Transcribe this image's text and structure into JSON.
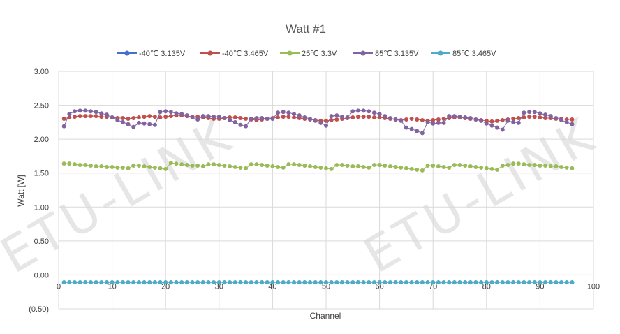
{
  "chart_data": {
    "type": "line",
    "title": "Watt #1",
    "xlabel": "Channel",
    "ylabel": "Watt [W]",
    "xlim": [
      0,
      100
    ],
    "ylim": [
      -0.5,
      3.0
    ],
    "x_ticks": [
      "0",
      "10",
      "20",
      "30",
      "40",
      "50",
      "60",
      "70",
      "80",
      "90",
      "100"
    ],
    "y_ticks": [
      {
        "value": 3.0,
        "label": "3.00",
        "color": "#404040"
      },
      {
        "value": 2.5,
        "label": "2.50",
        "color": "#404040"
      },
      {
        "value": 2.0,
        "label": "2.00",
        "color": "#404040"
      },
      {
        "value": 1.5,
        "label": "1.50",
        "color": "#404040"
      },
      {
        "value": 1.0,
        "label": "1.00",
        "color": "#404040"
      },
      {
        "value": 0.5,
        "label": "0.50",
        "color": "#404040"
      },
      {
        "value": 0.0,
        "label": "0.00",
        "color": "#404040"
      },
      {
        "value": -0.5,
        "label": "(0.50)",
        "color": "#c00000"
      }
    ],
    "grid": true,
    "legend_position": "top",
    "watermark": "ETU-LINK",
    "series": [
      {
        "name": "-40℃ 3.135V",
        "color": "#4472c4",
        "x_start": 1,
        "values": [
          -0.11,
          -0.11,
          -0.11,
          -0.11,
          -0.11,
          -0.11,
          -0.11,
          -0.11,
          -0.11,
          -0.11,
          -0.11,
          -0.11,
          -0.11,
          -0.11,
          -0.11,
          -0.11,
          -0.11,
          -0.11,
          -0.11,
          -0.11,
          -0.11,
          -0.11,
          -0.11,
          -0.11,
          -0.11,
          -0.11,
          -0.11,
          -0.11,
          -0.11,
          -0.11,
          -0.11,
          -0.11,
          -0.11,
          -0.11,
          -0.11,
          -0.11,
          -0.11,
          -0.11,
          -0.11,
          -0.11,
          -0.11,
          -0.11,
          -0.11,
          -0.11,
          -0.11,
          -0.11,
          -0.11,
          -0.11,
          -0.11,
          -0.11,
          -0.11,
          -0.11,
          -0.11,
          -0.11,
          -0.11,
          -0.11,
          -0.11,
          -0.11,
          -0.11,
          -0.11,
          -0.11,
          -0.11,
          -0.11,
          -0.11,
          -0.11,
          -0.11,
          -0.11,
          -0.11,
          -0.11,
          -0.11,
          -0.11,
          -0.11,
          -0.11,
          -0.11,
          -0.11,
          -0.11,
          -0.11,
          -0.11,
          -0.11,
          -0.11,
          -0.11,
          -0.11,
          -0.11,
          -0.11,
          -0.11,
          -0.11,
          -0.11,
          -0.11,
          -0.11,
          -0.11,
          -0.11,
          -0.11,
          -0.11,
          -0.11,
          -0.11,
          -0.11
        ]
      },
      {
        "name": "-40℃ 3.465V",
        "color": "#c0504d",
        "x_start": 1,
        "values": [
          2.3,
          2.32,
          2.33,
          2.34,
          2.34,
          2.34,
          2.34,
          2.33,
          2.33,
          2.32,
          2.31,
          2.31,
          2.3,
          2.31,
          2.32,
          2.33,
          2.34,
          2.33,
          2.32,
          2.33,
          2.34,
          2.35,
          2.35,
          2.34,
          2.33,
          2.33,
          2.32,
          2.31,
          2.3,
          2.3,
          2.31,
          2.32,
          2.32,
          2.31,
          2.3,
          2.29,
          2.28,
          2.29,
          2.3,
          2.31,
          2.32,
          2.33,
          2.33,
          2.32,
          2.31,
          2.3,
          2.29,
          2.28,
          2.27,
          2.27,
          2.28,
          2.29,
          2.3,
          2.31,
          2.32,
          2.33,
          2.33,
          2.33,
          2.32,
          2.32,
          2.31,
          2.3,
          2.29,
          2.28,
          2.29,
          2.3,
          2.29,
          2.28,
          2.27,
          2.28,
          2.29,
          2.3,
          2.31,
          2.32,
          2.32,
          2.31,
          2.3,
          2.29,
          2.28,
          2.27,
          2.26,
          2.27,
          2.28,
          2.29,
          2.3,
          2.31,
          2.32,
          2.33,
          2.33,
          2.32,
          2.31,
          2.31,
          2.3,
          2.3,
          2.29,
          2.29
        ]
      },
      {
        "name": "25℃ 3.3V",
        "color": "#9bbb59",
        "x_start": 1,
        "values": [
          1.64,
          1.64,
          1.63,
          1.62,
          1.62,
          1.61,
          1.6,
          1.6,
          1.59,
          1.59,
          1.58,
          1.58,
          1.57,
          1.61,
          1.61,
          1.6,
          1.59,
          1.58,
          1.57,
          1.56,
          1.65,
          1.64,
          1.63,
          1.62,
          1.61,
          1.61,
          1.6,
          1.63,
          1.63,
          1.62,
          1.61,
          1.6,
          1.59,
          1.58,
          1.57,
          1.63,
          1.63,
          1.62,
          1.61,
          1.6,
          1.59,
          1.58,
          1.63,
          1.63,
          1.62,
          1.61,
          1.6,
          1.59,
          1.58,
          1.57,
          1.56,
          1.62,
          1.62,
          1.61,
          1.6,
          1.6,
          1.59,
          1.58,
          1.62,
          1.62,
          1.61,
          1.6,
          1.59,
          1.58,
          1.57,
          1.56,
          1.55,
          1.54,
          1.61,
          1.61,
          1.6,
          1.59,
          1.58,
          1.62,
          1.62,
          1.61,
          1.6,
          1.59,
          1.58,
          1.57,
          1.56,
          1.55,
          1.61,
          1.62,
          1.64,
          1.64,
          1.63,
          1.62,
          1.62,
          1.61,
          1.61,
          1.6,
          1.6,
          1.59,
          1.58,
          1.57
        ]
      },
      {
        "name": "85℃ 3.135V",
        "color": "#8064a2",
        "x_start": 1,
        "values": [
          2.19,
          2.37,
          2.41,
          2.42,
          2.42,
          2.41,
          2.4,
          2.38,
          2.36,
          2.32,
          2.28,
          2.25,
          2.22,
          2.18,
          2.24,
          2.23,
          2.22,
          2.21,
          2.4,
          2.41,
          2.4,
          2.38,
          2.37,
          2.35,
          2.32,
          2.29,
          2.34,
          2.34,
          2.33,
          2.33,
          2.31,
          2.28,
          2.25,
          2.21,
          2.19,
          2.3,
          2.31,
          2.31,
          2.3,
          2.3,
          2.39,
          2.4,
          2.39,
          2.37,
          2.35,
          2.32,
          2.3,
          2.27,
          2.24,
          2.2,
          2.34,
          2.35,
          2.33,
          2.32,
          2.41,
          2.42,
          2.42,
          2.41,
          2.39,
          2.37,
          2.34,
          2.31,
          2.29,
          2.27,
          2.17,
          2.15,
          2.12,
          2.09,
          2.25,
          2.23,
          2.24,
          2.24,
          2.34,
          2.34,
          2.33,
          2.32,
          2.31,
          2.29,
          2.27,
          2.23,
          2.2,
          2.17,
          2.14,
          2.27,
          2.25,
          2.24,
          2.39,
          2.4,
          2.4,
          2.38,
          2.36,
          2.34,
          2.31,
          2.28,
          2.25,
          2.22
        ]
      },
      {
        "name": "85℃ 3.465V",
        "color": "#4bacc6",
        "x_start": 1,
        "values": [
          -0.11,
          -0.11,
          -0.11,
          -0.11,
          -0.11,
          -0.11,
          -0.11,
          -0.11,
          -0.11,
          -0.11,
          -0.11,
          -0.11,
          -0.11,
          -0.11,
          -0.11,
          -0.11,
          -0.11,
          -0.11,
          -0.11,
          -0.11,
          -0.11,
          -0.11,
          -0.11,
          -0.11,
          -0.11,
          -0.11,
          -0.11,
          -0.11,
          -0.11,
          -0.11,
          -0.11,
          -0.11,
          -0.11,
          -0.11,
          -0.11,
          -0.11,
          -0.11,
          -0.11,
          -0.11,
          -0.11,
          -0.11,
          -0.11,
          -0.11,
          -0.11,
          -0.11,
          -0.11,
          -0.11,
          -0.11,
          -0.11,
          -0.11,
          -0.11,
          -0.11,
          -0.11,
          -0.11,
          -0.11,
          -0.11,
          -0.11,
          -0.11,
          -0.11,
          -0.11,
          -0.11,
          -0.11,
          -0.11,
          -0.11,
          -0.11,
          -0.11,
          -0.11,
          -0.11,
          -0.11,
          -0.11,
          -0.11,
          -0.11,
          -0.11,
          -0.11,
          -0.11,
          -0.11,
          -0.11,
          -0.11,
          -0.11,
          -0.11,
          -0.11,
          -0.11,
          -0.11,
          -0.11,
          -0.11,
          -0.11,
          -0.11,
          -0.11,
          -0.11,
          -0.11,
          -0.11,
          -0.11,
          -0.11,
          -0.11,
          -0.11,
          -0.11
        ]
      }
    ]
  }
}
